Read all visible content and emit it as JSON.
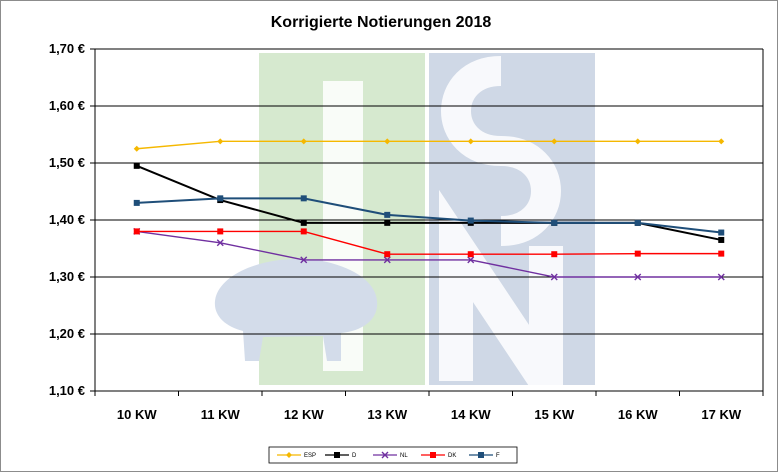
{
  "chart_data": {
    "type": "line",
    "title": "Korrigierte Notierungen 2018",
    "xlabel": "",
    "ylabel": "",
    "categories": [
      "10 KW",
      "11 KW",
      "12 KW",
      "13 KW",
      "14 KW",
      "15 KW",
      "16 KW",
      "17 KW"
    ],
    "ylim": [
      1.1,
      1.7
    ],
    "yticks": [
      1.1,
      1.2,
      1.3,
      1.4,
      1.5,
      1.6,
      1.7
    ],
    "ytick_labels": [
      "1,10 €",
      "1,20 €",
      "1,30 €",
      "1,40 €",
      "1,50 €",
      "1,60 €",
      "1,70 €"
    ],
    "grid": true,
    "legend_position": "bottom",
    "series": [
      {
        "name": "ESP",
        "color": "#f5b800",
        "marker": "diamond",
        "values": [
          1.525,
          1.538,
          1.538,
          1.538,
          1.538,
          1.538,
          1.538,
          1.538
        ]
      },
      {
        "name": "D",
        "color": "#000000",
        "marker": "square",
        "values": [
          1.495,
          1.435,
          1.395,
          1.395,
          1.395,
          1.395,
          1.395,
          1.365
        ]
      },
      {
        "name": "NL",
        "color": "#7030a0",
        "marker": "cross",
        "values": [
          1.38,
          1.36,
          1.33,
          1.33,
          1.33,
          1.3,
          1.3,
          1.3
        ]
      },
      {
        "name": "DK",
        "color": "#ff0000",
        "marker": "square",
        "values": [
          1.38,
          1.38,
          1.38,
          1.34,
          1.34,
          1.34,
          1.341,
          1.341
        ]
      },
      {
        "name": "F",
        "color": "#1f4e79",
        "marker": "square",
        "values": [
          1.43,
          1.438,
          1.438,
          1.409,
          1.399,
          1.395,
          1.395,
          1.378
        ]
      }
    ]
  },
  "watermark": {
    "text": "ISN",
    "colors": {
      "green": "#d6e9cf",
      "blue": "#cfd8e6"
    }
  }
}
